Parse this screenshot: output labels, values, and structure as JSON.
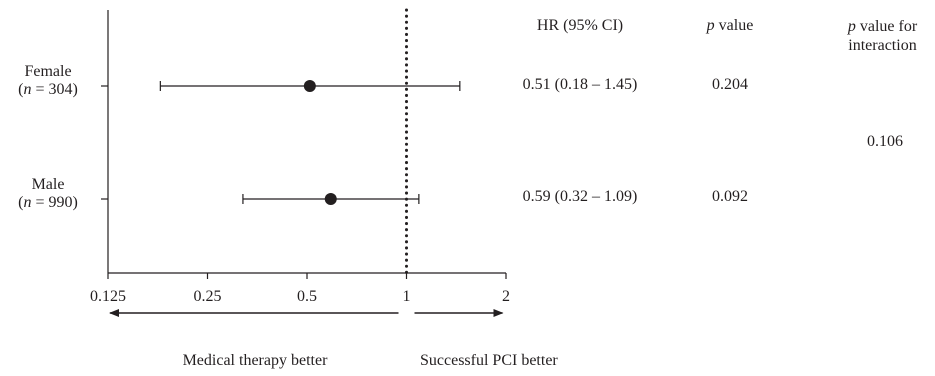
{
  "chart_data": {
    "type": "forest",
    "x_scale": "log2",
    "xlim": [
      0.125,
      2
    ],
    "x_ticks": [
      "0.125",
      "0.25",
      "0.5",
      "1",
      "2"
    ],
    "reference_line": 1,
    "rows": [
      {
        "label": "Female",
        "n_prefix": "(",
        "n_symbol": "n",
        "n_text": " = 304)",
        "hr": 0.51,
        "ci_low": 0.18,
        "ci_high": 1.45,
        "hr_text": "0.51 (0.18 – 1.45)",
        "p_text": "0.204"
      },
      {
        "label": "Male",
        "n_prefix": "(",
        "n_symbol": "n",
        "n_text": " = 990)",
        "hr": 0.59,
        "ci_low": 0.32,
        "ci_high": 1.09,
        "hr_text": "0.59 (0.32 – 1.09)",
        "p_text": "0.092"
      }
    ],
    "columns": {
      "hr_header": "HR (95% CI)",
      "p_header_symbol": "p",
      "p_header_rest": " value",
      "interaction_header_symbol": "p",
      "interaction_header_line1_rest": " value for",
      "interaction_header_line2": "interaction",
      "interaction_p": "0.106"
    },
    "direction": {
      "left": "Medical therapy better",
      "right": "Successful PCI better"
    }
  }
}
